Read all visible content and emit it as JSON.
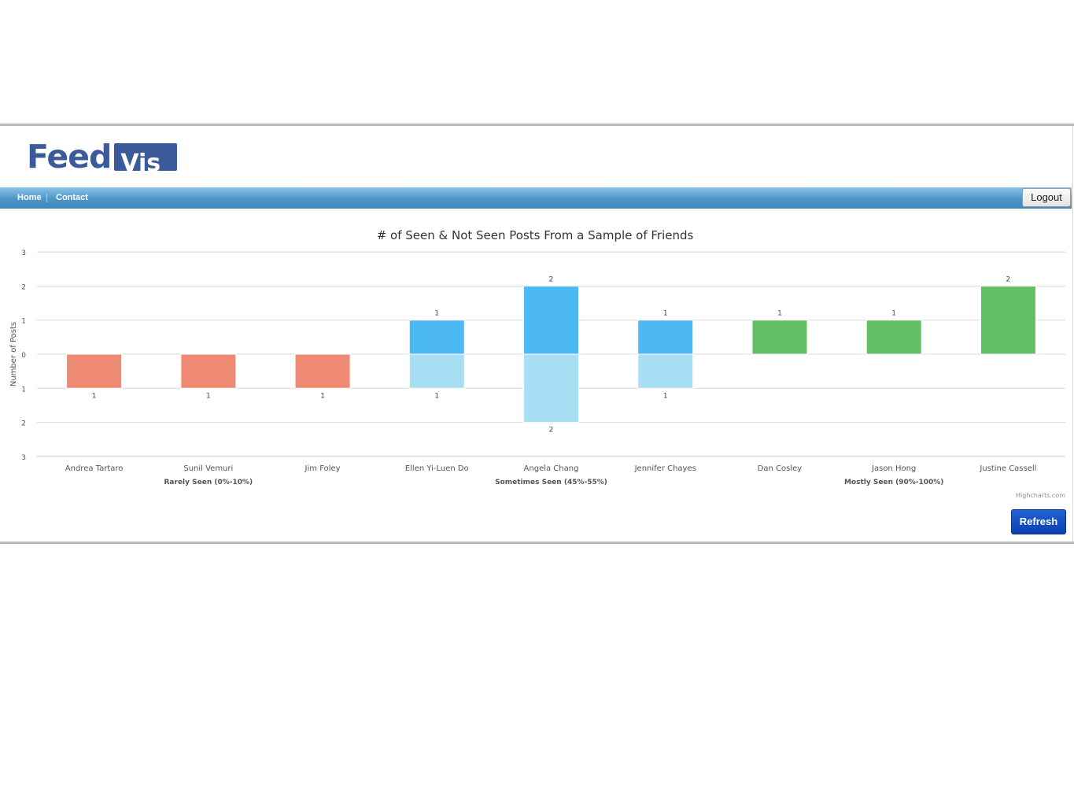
{
  "app": {
    "logo_feed": "Feed",
    "logo_vis": "Vis",
    "brand_color": "#3b5a9a"
  },
  "nav": {
    "home": "Home",
    "contact": "Contact",
    "logout": "Logout"
  },
  "actions": {
    "refresh": "Refresh"
  },
  "chart_data": {
    "type": "bar",
    "title": "# of Seen & Not Seen Posts From a Sample of Friends",
    "ylabel": "Number of Posts",
    "ylim": [
      -3,
      3
    ],
    "y_ticks": [
      3,
      2,
      1,
      0,
      -1,
      -2,
      -3
    ],
    "y_tick_labels": [
      "3",
      "2",
      "1",
      "0",
      "1",
      "2",
      "3"
    ],
    "grid": true,
    "categories": [
      "Andrea Tartaro",
      "Sunil Vemuri",
      "Jim Foley",
      "Ellen Yi-Luen Do",
      "Angela Chang",
      "Jennifer Chayes",
      "Dan Cosley",
      "Jason Hong",
      "Justine Cassell"
    ],
    "groups": [
      {
        "label": "Rarely Seen (0%-10%)",
        "center_index": 1
      },
      {
        "label": "Sometimes Seen (45%-55%)",
        "center_index": 4
      },
      {
        "label": "Mostly Seen (90%-100%)",
        "center_index": 7
      }
    ],
    "series": [
      {
        "values": [
          0,
          0,
          0,
          0,
          0,
          0,
          1,
          1,
          2
        ],
        "color": "#62bf63"
      },
      {
        "values": [
          0,
          0,
          0,
          1,
          2,
          1,
          0,
          0,
          0
        ],
        "color": "#4cb9f5"
      },
      {
        "values": [
          -1,
          -1,
          -1,
          0,
          0,
          0,
          0,
          0,
          0
        ],
        "color": "#ee8a73"
      },
      {
        "values": [
          0,
          0,
          0,
          -1,
          -2,
          -1,
          0,
          0,
          0
        ],
        "color": "#a9dff4"
      }
    ],
    "credit": "Highcharts.com"
  }
}
